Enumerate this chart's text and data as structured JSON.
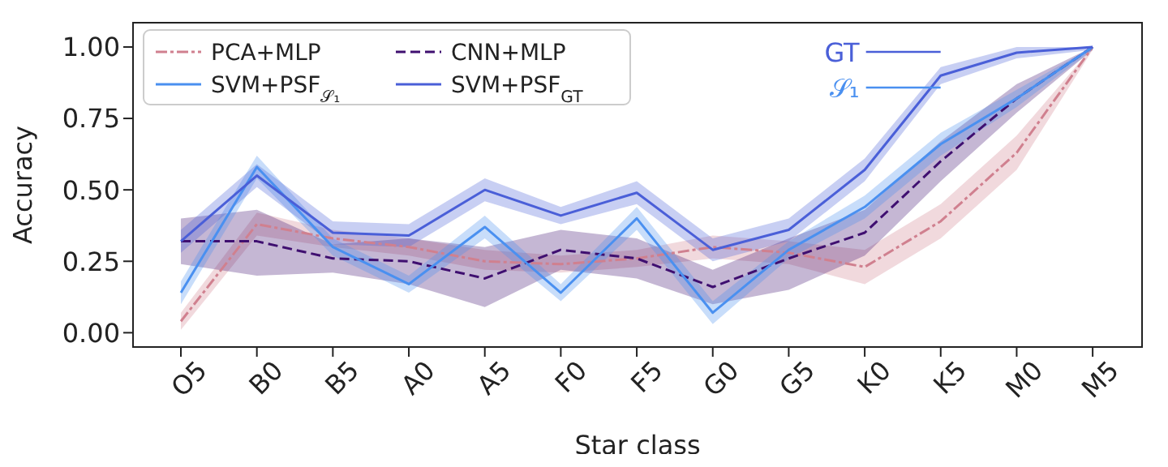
{
  "chart_data": {
    "type": "line",
    "xlabel": "Star class",
    "ylabel": "Accuracy",
    "categories": [
      "O5",
      "B0",
      "B5",
      "A0",
      "A5",
      "F0",
      "F5",
      "G0",
      "G5",
      "K0",
      "K5",
      "M0",
      "M5"
    ],
    "ylim": [
      -0.05,
      1.085
    ],
    "yticks": [
      {
        "value": 0,
        "label": "0.00"
      },
      {
        "value": 0.25,
        "label": "0.25"
      },
      {
        "value": 0.5,
        "label": "0.50"
      },
      {
        "value": 0.75,
        "label": "0.75"
      },
      {
        "value": 1,
        "label": "1.00"
      }
    ],
    "grid": false,
    "legend": "top left",
    "marker": "none",
    "series": [
      {
        "name": "PCA+MLP",
        "color": "#d0808f",
        "line_style": "dashdot",
        "values": [
          0.04,
          0.38,
          0.33,
          0.3,
          0.25,
          0.24,
          0.26,
          0.3,
          0.28,
          0.23,
          0.39,
          0.63,
          1.0
        ],
        "lower": [
          0.01,
          0.34,
          0.3,
          0.27,
          0.22,
          0.21,
          0.23,
          0.26,
          0.24,
          0.17,
          0.33,
          0.57,
          0.99
        ],
        "upper": [
          0.07,
          0.42,
          0.36,
          0.33,
          0.29,
          0.27,
          0.29,
          0.34,
          0.32,
          0.29,
          0.45,
          0.69,
          1.0
        ]
      },
      {
        "name": "CNN+MLP",
        "color": "#3f0f70",
        "line_style": "dashed",
        "values": [
          0.32,
          0.32,
          0.26,
          0.25,
          0.19,
          0.29,
          0.26,
          0.16,
          0.26,
          0.35,
          0.6,
          0.82,
          1.0
        ],
        "lower": [
          0.24,
          0.2,
          0.21,
          0.17,
          0.09,
          0.22,
          0.19,
          0.1,
          0.15,
          0.27,
          0.53,
          0.77,
          0.99
        ],
        "upper": [
          0.4,
          0.43,
          0.31,
          0.33,
          0.3,
          0.36,
          0.33,
          0.22,
          0.33,
          0.43,
          0.67,
          0.87,
          1.0
        ]
      },
      {
        "name": "SVM+PSF$_{𝒮₁}$",
        "color": "#4a90f0",
        "line_style": "solid",
        "values": [
          0.14,
          0.58,
          0.3,
          0.17,
          0.37,
          0.14,
          0.4,
          0.07,
          0.29,
          0.44,
          0.66,
          0.82,
          1.0
        ],
        "lower": [
          0.1,
          0.54,
          0.27,
          0.14,
          0.33,
          0.11,
          0.36,
          0.03,
          0.26,
          0.4,
          0.62,
          0.79,
          0.99
        ],
        "upper": [
          0.18,
          0.62,
          0.33,
          0.2,
          0.41,
          0.17,
          0.44,
          0.11,
          0.32,
          0.48,
          0.7,
          0.85,
          1.0
        ]
      },
      {
        "name": "SVM+PSF$_{GT}$",
        "color": "#4a5fd8",
        "line_style": "solid",
        "values": [
          0.32,
          0.55,
          0.35,
          0.34,
          0.5,
          0.41,
          0.49,
          0.29,
          0.36,
          0.57,
          0.9,
          0.98,
          1.0
        ],
        "lower": [
          0.28,
          0.51,
          0.31,
          0.3,
          0.46,
          0.38,
          0.45,
          0.25,
          0.32,
          0.53,
          0.87,
          0.96,
          0.99
        ],
        "upper": [
          0.36,
          0.59,
          0.39,
          0.38,
          0.54,
          0.44,
          0.53,
          0.33,
          0.4,
          0.61,
          0.93,
          1.0,
          1.0
        ]
      }
    ],
    "annotations": [
      "GT",
      "𝒮₁"
    ]
  }
}
